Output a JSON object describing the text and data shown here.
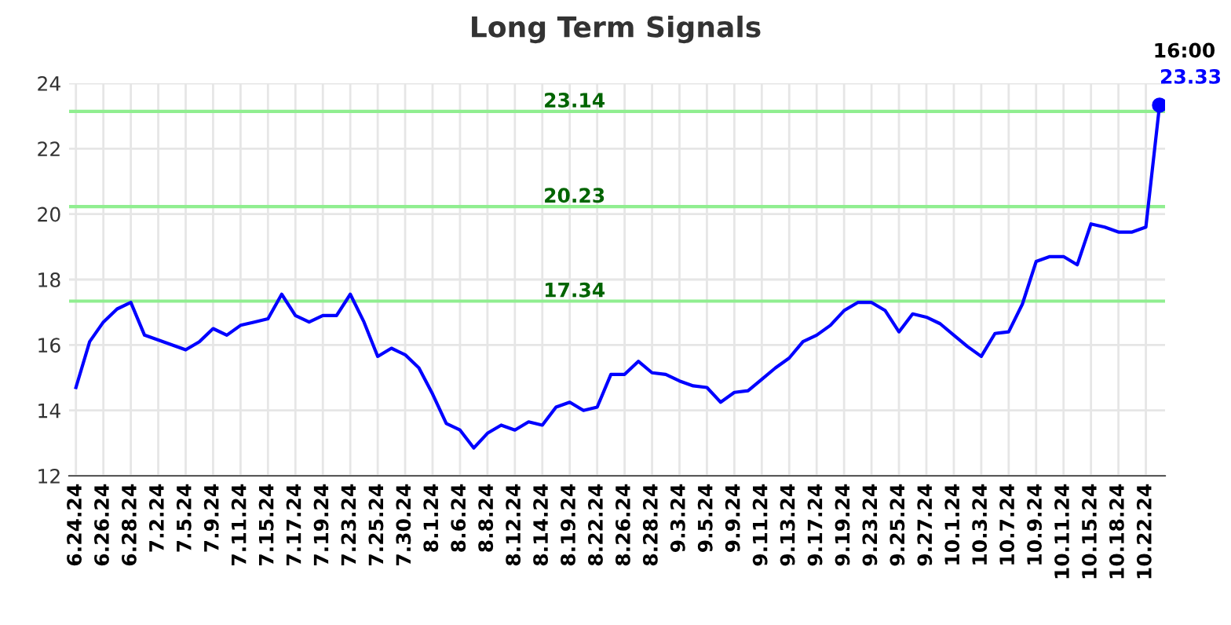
{
  "chart_data": {
    "type": "line",
    "title": "Long Term Signals",
    "categories": [
      "6.24.24",
      null,
      "6.26.24",
      null,
      "6.28.24",
      null,
      "7.2.24",
      null,
      "7.5.24",
      null,
      "7.9.24",
      null,
      "7.11.24",
      null,
      "7.15.24",
      null,
      "7.17.24",
      null,
      "7.19.24",
      null,
      "7.23.24",
      null,
      "7.25.24",
      null,
      "7.30.24",
      null,
      "8.1.24",
      null,
      "8.6.24",
      null,
      "8.8.24",
      null,
      "8.12.24",
      null,
      "8.14.24",
      null,
      "8.19.24",
      null,
      "8.22.24",
      null,
      "8.26.24",
      null,
      "8.28.24",
      null,
      "9.3.24",
      null,
      "9.5.24",
      null,
      "9.9.24",
      null,
      "9.11.24",
      null,
      "9.13.24",
      null,
      "9.17.24",
      null,
      "9.19.24",
      null,
      "9.23.24",
      null,
      "9.25.24",
      null,
      "9.27.24",
      null,
      "10.1.24",
      null,
      "10.3.24",
      null,
      "10.7.24",
      null,
      "10.9.24",
      null,
      "10.11.24",
      null,
      "10.15.24",
      null,
      "10.18.24",
      null,
      "10.22.24",
      null
    ],
    "series": [
      {
        "color": "#0000ff",
        "marker": "none",
        "values": [
          14.7,
          16.1,
          16.7,
          17.1,
          17.3,
          16.3,
          16.15,
          16.0,
          15.85,
          16.1,
          16.5,
          16.3,
          16.6,
          16.7,
          16.8,
          17.55,
          16.9,
          16.7,
          16.9,
          16.9,
          17.55,
          16.7,
          15.65,
          15.9,
          15.7,
          15.3,
          14.5,
          13.6,
          13.4,
          12.85,
          13.3,
          13.55,
          13.4,
          13.65,
          13.55,
          14.1,
          14.25,
          14.0,
          14.1,
          15.1,
          15.1,
          15.5,
          15.15,
          15.1,
          14.9,
          14.75,
          14.7,
          14.25,
          14.55,
          14.6,
          14.95,
          15.3,
          15.6,
          16.1,
          16.3,
          16.6,
          17.05,
          17.3,
          17.3,
          17.05,
          16.4,
          16.95,
          16.85,
          16.65,
          16.3,
          15.95,
          15.65,
          16.35,
          16.4,
          17.25,
          18.55,
          18.7,
          18.7,
          18.45,
          19.7,
          19.6,
          19.45,
          19.45,
          19.6,
          23.33
        ]
      },
      {
        "type": "scatter",
        "color": "#0000ff",
        "marker": "circle",
        "values": [
          null,
          null,
          null,
          null,
          null,
          null,
          null,
          null,
          null,
          null,
          null,
          null,
          null,
          null,
          null,
          null,
          null,
          null,
          null,
          null,
          null,
          null,
          null,
          null,
          null,
          null,
          null,
          null,
          null,
          null,
          null,
          null,
          null,
          null,
          null,
          null,
          null,
          null,
          null,
          null,
          null,
          null,
          null,
          null,
          null,
          null,
          null,
          null,
          null,
          null,
          null,
          null,
          null,
          null,
          null,
          null,
          null,
          null,
          null,
          null,
          null,
          null,
          null,
          null,
          null,
          null,
          null,
          null,
          null,
          null,
          null,
          null,
          null,
          null,
          null,
          null,
          null,
          null,
          null,
          23.33
        ],
        "value_labels": [
          null,
          null,
          null,
          null,
          null,
          null,
          null,
          null,
          null,
          null,
          null,
          null,
          null,
          null,
          null,
          null,
          null,
          null,
          null,
          null,
          null,
          null,
          null,
          null,
          null,
          null,
          null,
          null,
          null,
          null,
          null,
          null,
          null,
          null,
          null,
          null,
          null,
          null,
          null,
          null,
          null,
          null,
          null,
          null,
          null,
          null,
          null,
          null,
          null,
          null,
          null,
          null,
          null,
          null,
          null,
          null,
          null,
          null,
          null,
          null,
          null,
          null,
          null,
          null,
          null,
          null,
          null,
          null,
          null,
          null,
          null,
          null,
          null,
          null,
          null,
          null,
          null,
          null,
          null,
          "23.33"
        ]
      }
    ],
    "annotations": [
      "16:00"
    ],
    "ref_lines": [
      {
        "axis": "y",
        "value": 23.14,
        "label": "23.14",
        "color": "#90ee90"
      },
      {
        "axis": "y",
        "value": 20.23,
        "label": "20.23",
        "color": "#90ee90"
      },
      {
        "axis": "y",
        "value": 17.34,
        "label": "17.34",
        "color": "#90ee90"
      }
    ],
    "ylim": [
      12,
      24
    ],
    "yticks": [
      12,
      14,
      16,
      18,
      20,
      22,
      24
    ],
    "grid": true,
    "legend": false
  }
}
